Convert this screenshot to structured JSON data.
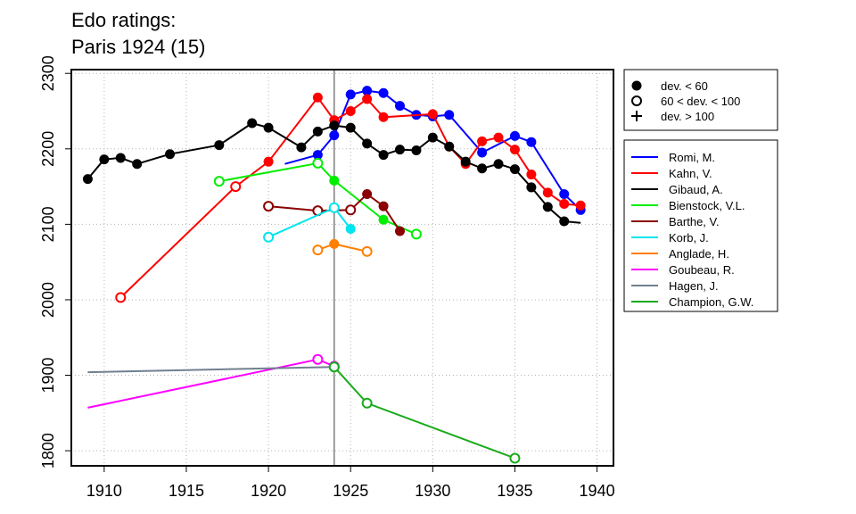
{
  "chart_data": {
    "type": "line",
    "title_lines": [
      "Edo ratings:",
      "Paris 1924 (15)"
    ],
    "xlim": [
      1908,
      1941
    ],
    "ylim": [
      1780,
      2305
    ],
    "xticks": [
      1910,
      1915,
      1920,
      1925,
      1930,
      1935,
      1940
    ],
    "yticks": [
      1800,
      1900,
      2000,
      2100,
      2200,
      2300
    ],
    "xtick_labels": [
      "1910",
      "1915",
      "1920",
      "1925",
      "1930",
      "1935",
      "1940"
    ],
    "ytick_labels": [
      "1800",
      "1900",
      "2000",
      "2100",
      "2200",
      "2300"
    ],
    "grid": true,
    "event_year": 1924,
    "marker_legend": [
      {
        "marker": "dot",
        "label": "dev. < 60"
      },
      {
        "marker": "circle",
        "label": "60 < dev. < 100"
      },
      {
        "marker": "plus",
        "label": "dev. > 100"
      }
    ],
    "series": [
      {
        "name": "Romi, M.",
        "color": "#0000ff",
        "points": [
          {
            "x": 1921,
            "y": 2180,
            "m": "none"
          },
          {
            "x": 1923,
            "y": 2192,
            "m": "dot"
          },
          {
            "x": 1924,
            "y": 2218,
            "m": "dot"
          },
          {
            "x": 1925,
            "y": 2272,
            "m": "dot"
          },
          {
            "x": 1926,
            "y": 2277,
            "m": "dot"
          },
          {
            "x": 1927,
            "y": 2274,
            "m": "dot"
          },
          {
            "x": 1928,
            "y": 2257,
            "m": "dot"
          },
          {
            "x": 1929,
            "y": 2245,
            "m": "dot"
          },
          {
            "x": 1930,
            "y": 2243,
            "m": "dot"
          },
          {
            "x": 1931,
            "y": 2245,
            "m": "dot"
          },
          {
            "x": 1933,
            "y": 2195,
            "m": "dot"
          },
          {
            "x": 1935,
            "y": 2217,
            "m": "dot"
          },
          {
            "x": 1936,
            "y": 2209,
            "m": "dot"
          },
          {
            "x": 1938,
            "y": 2140,
            "m": "dot"
          },
          {
            "x": 1939,
            "y": 2119,
            "m": "dot"
          }
        ]
      },
      {
        "name": "Kahn, V.",
        "color": "#ff0000",
        "points": [
          {
            "x": 1911,
            "y": 2003,
            "m": "circle"
          },
          {
            "x": 1918,
            "y": 2150,
            "m": "circle"
          },
          {
            "x": 1920,
            "y": 2183,
            "m": "dot"
          },
          {
            "x": 1923,
            "y": 2268,
            "m": "dot"
          },
          {
            "x": 1924,
            "y": 2238,
            "m": "dot"
          },
          {
            "x": 1925,
            "y": 2250,
            "m": "dot"
          },
          {
            "x": 1926,
            "y": 2266,
            "m": "dot"
          },
          {
            "x": 1927,
            "y": 2242,
            "m": "dot"
          },
          {
            "x": 1930,
            "y": 2246,
            "m": "dot"
          },
          {
            "x": 1931,
            "y": 2203,
            "m": "dot"
          },
          {
            "x": 1932,
            "y": 2180,
            "m": "dot"
          },
          {
            "x": 1933,
            "y": 2210,
            "m": "dot"
          },
          {
            "x": 1934,
            "y": 2215,
            "m": "dot"
          },
          {
            "x": 1935,
            "y": 2199,
            "m": "dot"
          },
          {
            "x": 1936,
            "y": 2166,
            "m": "dot"
          },
          {
            "x": 1937,
            "y": 2142,
            "m": "dot"
          },
          {
            "x": 1938,
            "y": 2127,
            "m": "dot"
          },
          {
            "x": 1939,
            "y": 2125,
            "m": "dot"
          }
        ]
      },
      {
        "name": "Gibaud, A.",
        "color": "#000000",
        "points": [
          {
            "x": 1909,
            "y": 2160,
            "m": "dot"
          },
          {
            "x": 1910,
            "y": 2186,
            "m": "dot"
          },
          {
            "x": 1911,
            "y": 2188,
            "m": "dot"
          },
          {
            "x": 1912,
            "y": 2180,
            "m": "dot"
          },
          {
            "x": 1914,
            "y": 2193,
            "m": "dot"
          },
          {
            "x": 1917,
            "y": 2205,
            "m": "dot"
          },
          {
            "x": 1919,
            "y": 2234,
            "m": "dot"
          },
          {
            "x": 1920,
            "y": 2228,
            "m": "dot"
          },
          {
            "x": 1922,
            "y": 2202,
            "m": "dot"
          },
          {
            "x": 1923,
            "y": 2223,
            "m": "dot"
          },
          {
            "x": 1924,
            "y": 2231,
            "m": "dot"
          },
          {
            "x": 1925,
            "y": 2228,
            "m": "dot"
          },
          {
            "x": 1926,
            "y": 2207,
            "m": "dot"
          },
          {
            "x": 1927,
            "y": 2192,
            "m": "dot"
          },
          {
            "x": 1928,
            "y": 2199,
            "m": "dot"
          },
          {
            "x": 1929,
            "y": 2198,
            "m": "dot"
          },
          {
            "x": 1930,
            "y": 2215,
            "m": "dot"
          },
          {
            "x": 1931,
            "y": 2203,
            "m": "dot"
          },
          {
            "x": 1932,
            "y": 2183,
            "m": "dot"
          },
          {
            "x": 1933,
            "y": 2174,
            "m": "dot"
          },
          {
            "x": 1934,
            "y": 2180,
            "m": "dot"
          },
          {
            "x": 1935,
            "y": 2173,
            "m": "dot"
          },
          {
            "x": 1936,
            "y": 2149,
            "m": "dot"
          },
          {
            "x": 1937,
            "y": 2123,
            "m": "dot"
          },
          {
            "x": 1938,
            "y": 2104,
            "m": "dot"
          },
          {
            "x": 1939,
            "y": 2102,
            "m": "none"
          }
        ]
      },
      {
        "name": "Bienstock, V.L.",
        "color": "#00ee00",
        "points": [
          {
            "x": 1917,
            "y": 2157,
            "m": "circle"
          },
          {
            "x": 1923,
            "y": 2181,
            "m": "circle"
          },
          {
            "x": 1924,
            "y": 2158,
            "m": "dot"
          },
          {
            "x": 1927,
            "y": 2106,
            "m": "dot"
          },
          {
            "x": 1929,
            "y": 2087,
            "m": "circle"
          }
        ]
      },
      {
        "name": "Barthe, V.",
        "color": "#8b0000",
        "points": [
          {
            "x": 1920,
            "y": 2124,
            "m": "circle"
          },
          {
            "x": 1923,
            "y": 2118,
            "m": "circle"
          },
          {
            "x": 1925,
            "y": 2119,
            "m": "circle"
          },
          {
            "x": 1926,
            "y": 2140,
            "m": "dot"
          },
          {
            "x": 1927,
            "y": 2124,
            "m": "dot"
          },
          {
            "x": 1928,
            "y": 2091,
            "m": "dot"
          }
        ]
      },
      {
        "name": "Korb, J.",
        "color": "#00e5ee",
        "points": [
          {
            "x": 1920,
            "y": 2083,
            "m": "circle"
          },
          {
            "x": 1924,
            "y": 2122,
            "m": "circle"
          },
          {
            "x": 1925,
            "y": 2094,
            "m": "dot"
          }
        ]
      },
      {
        "name": "Anglade, H.",
        "color": "#ff7f00",
        "points": [
          {
            "x": 1923,
            "y": 2066,
            "m": "circle"
          },
          {
            "x": 1924,
            "y": 2074,
            "m": "dot"
          },
          {
            "x": 1926,
            "y": 2064,
            "m": "circle"
          }
        ]
      },
      {
        "name": "Goubeau, R.",
        "color": "#ff00ff",
        "points": [
          {
            "x": 1909,
            "y": 1857,
            "m": "none"
          },
          {
            "x": 1923,
            "y": 1921,
            "m": "circle"
          },
          {
            "x": 1924,
            "y": 1912,
            "m": "circle"
          }
        ]
      },
      {
        "name": "Hagen, J.",
        "color": "#708090",
        "points": [
          {
            "x": 1909,
            "y": 1904,
            "m": "none"
          },
          {
            "x": 1924,
            "y": 1911,
            "m": "circle"
          }
        ]
      },
      {
        "name": "Champion, G.W.",
        "color": "#1aaa1a",
        "points": [
          {
            "x": 1924,
            "y": 1911,
            "m": "circle"
          },
          {
            "x": 1926,
            "y": 1863,
            "m": "circle"
          },
          {
            "x": 1935,
            "y": 1790,
            "m": "circle"
          }
        ]
      }
    ]
  }
}
